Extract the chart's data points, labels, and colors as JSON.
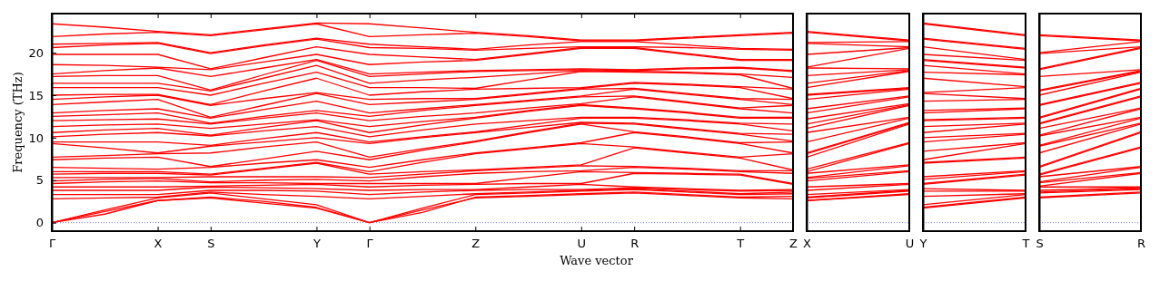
{
  "chart_data": [
    {
      "type": "line",
      "xlabel": "Wave vector",
      "ylabel": "Frequency (THz)",
      "categories": [
        "Γ",
        null,
        "X",
        "S",
        null,
        "Y",
        "Γ",
        null,
        "Z",
        null,
        "U",
        "R",
        null,
        "T",
        "Z"
      ],
      "ylim": [
        -1,
        24.6
      ],
      "yticks": [
        0,
        5,
        10,
        15,
        20
      ],
      "ref_lines": [
        {
          "axis": "y",
          "value": 0,
          "color": "#7f7fff",
          "line_style": "dotted"
        }
      ],
      "series": [
        {
          "color": "#ff0000",
          "values": [
            0,
            1.3,
            2.6,
            2.9,
            2.3,
            1.7,
            0,
            1.5,
            2.9,
            3.1,
            3.3,
            3.5,
            3.2,
            2.9,
            2.8
          ]
        },
        {
          "color": "#ff0000",
          "values": [
            0,
            1.0,
            2.6,
            3.0,
            2.5,
            1.8,
            0,
            1.2,
            3.0,
            3.2,
            3.4,
            3.6,
            3.3,
            3.0,
            3.1
          ]
        },
        {
          "color": "#ff0000",
          "values": [
            0,
            1.5,
            2.9,
            3.5,
            2.8,
            2.1,
            0,
            1.7,
            3.3,
            3.5,
            3.7,
            3.9,
            3.6,
            3.3,
            3.4
          ]
        },
        {
          "color": "#ff0000",
          "values": [
            2.8,
            2.9,
            3.0,
            3.6,
            3.3,
            3.1,
            2.8,
            3.1,
            3.4,
            3.6,
            3.8,
            4.0,
            3.7,
            3.4,
            3.6
          ]
        },
        {
          "color": "#ff0000",
          "values": [
            3.3,
            3.3,
            3.3,
            3.8,
            3.8,
            3.7,
            3.3,
            3.6,
            3.8,
            3.9,
            3.9,
            4.1,
            3.9,
            3.7,
            3.8
          ]
        },
        {
          "color": "#ff0000",
          "values": [
            3.8,
            3.8,
            3.8,
            4.2,
            4.1,
            4.0,
            3.8,
            3.9,
            3.9,
            4.2,
            4.5,
            4.2,
            4.0,
            3.8,
            3.9
          ]
        },
        {
          "color": "#ff0000",
          "values": [
            4.2,
            4.2,
            4.2,
            4.3,
            4.4,
            4.5,
            4.2,
            4.4,
            4.5,
            4.6,
            4.6,
            5.8,
            5.7,
            5.6,
            4.5
          ]
        },
        {
          "color": "#ff0000",
          "values": [
            4.6,
            4.8,
            4.9,
            4.7,
            4.7,
            4.6,
            4.6,
            4.6,
            4.6,
            5.3,
            6.0,
            5.9,
            5.8,
            5.7,
            4.6
          ]
        },
        {
          "color": "#ff0000",
          "values": [
            4.9,
            5.1,
            5.2,
            4.8,
            5.0,
            5.1,
            4.9,
            5.4,
            5.8,
            6.0,
            6.1,
            6.5,
            6.3,
            6.0,
            5.8
          ]
        },
        {
          "color": "#ff0000",
          "values": [
            5.3,
            5.3,
            5.3,
            5.4,
            5.4,
            5.4,
            5.3,
            5.7,
            6.1,
            6.4,
            6.7,
            6.6,
            6.4,
            6.1,
            6.1
          ]
        },
        {
          "color": "#ff0000",
          "values": [
            5.7,
            5.8,
            5.8,
            5.6,
            6.3,
            7.0,
            5.7,
            6.0,
            6.2,
            6.5,
            6.8,
            8.8,
            8.2,
            7.6,
            6.2
          ]
        },
        {
          "color": "#ff0000",
          "values": [
            6.0,
            6.0,
            6.0,
            5.7,
            6.4,
            7.1,
            6.0,
            7.1,
            8.1,
            8.7,
            9.3,
            8.9,
            8.3,
            7.7,
            8.1
          ]
        },
        {
          "color": "#ff0000",
          "values": [
            6.5,
            6.4,
            6.3,
            6.5,
            7.0,
            7.4,
            6.5,
            7.4,
            8.2,
            8.8,
            9.4,
            10.6,
            10.0,
            9.3,
            8.2
          ]
        },
        {
          "color": "#ff0000",
          "values": [
            7.4,
            7.6,
            7.7,
            6.6,
            7.5,
            8.4,
            7.4,
            8.5,
            9.5,
            10.6,
            11.6,
            10.7,
            10.1,
            9.4,
            9.5
          ]
        },
        {
          "color": "#ff0000",
          "values": [
            7.7,
            7.9,
            8.1,
            8.2,
            8.9,
            9.5,
            7.7,
            8.7,
            9.6,
            10.7,
            11.7,
            11.6,
            11.0,
            10.4,
            9.6
          ]
        },
        {
          "color": "#ff0000",
          "values": [
            9.3,
            8.8,
            8.2,
            9.0,
            9.5,
            10.0,
            9.3,
            10.0,
            10.6,
            11.2,
            11.8,
            11.7,
            11.1,
            10.5,
            10.4
          ]
        },
        {
          "color": "#ff0000",
          "values": [
            9.5,
            9.5,
            9.5,
            9.1,
            9.9,
            10.6,
            9.5,
            10.1,
            10.7,
            11.5,
            12.3,
            12.3,
            12.0,
            11.6,
            10.8
          ]
        },
        {
          "color": "#ff0000",
          "values": [
            10.1,
            10.4,
            10.6,
            10.2,
            10.8,
            11.3,
            10.1,
            10.9,
            11.6,
            12.0,
            12.4,
            12.4,
            12.1,
            11.7,
            11.6
          ]
        },
        {
          "color": "#ff0000",
          "values": [
            10.6,
            10.9,
            11.1,
            10.3,
            11.2,
            12.0,
            10.6,
            11.5,
            12.3,
            13.1,
            13.8,
            13.4,
            12.9,
            12.3,
            12.3
          ]
        },
        {
          "color": "#ff0000",
          "values": [
            11.3,
            11.5,
            11.6,
            11.1,
            11.6,
            12.1,
            11.3,
            11.9,
            12.4,
            13.2,
            13.9,
            13.5,
            13.0,
            12.4,
            12.4
          ]
        },
        {
          "color": "#ff0000",
          "values": [
            12.0,
            12.1,
            12.2,
            11.6,
            12.3,
            12.9,
            12.0,
            12.5,
            12.9,
            13.5,
            14.0,
            14.8,
            14.1,
            13.4,
            12.9
          ]
        },
        {
          "color": "#ff0000",
          "values": [
            12.5,
            12.7,
            12.9,
            11.7,
            12.5,
            13.2,
            12.5,
            13.2,
            13.8,
            14.3,
            14.8,
            14.9,
            14.2,
            13.5,
            13.8
          ]
        },
        {
          "color": "#ff0000",
          "values": [
            12.9,
            13.2,
            13.4,
            12.3,
            13.3,
            14.3,
            12.9,
            13.4,
            13.9,
            14.4,
            14.9,
            15.7,
            15.1,
            14.5,
            13.9
          ]
        },
        {
          "color": "#ff0000",
          "values": [
            13.9,
            14.2,
            14.5,
            12.4,
            13.8,
            15.2,
            13.9,
            14.2,
            14.5,
            15.1,
            15.7,
            15.8,
            15.2,
            14.6,
            14.5
          ]
        },
        {
          "color": "#ff0000",
          "values": [
            14.5,
            14.8,
            15.0,
            13.8,
            14.6,
            15.3,
            14.5,
            14.6,
            14.6,
            15.2,
            15.8,
            16.4,
            16.2,
            15.9,
            14.6
          ]
        },
        {
          "color": "#ff0000",
          "values": [
            15.0,
            15.1,
            15.1,
            13.9,
            15.5,
            17.0,
            15.0,
            15.4,
            15.7,
            15.8,
            15.9,
            16.5,
            16.3,
            16.0,
            15.7
          ]
        },
        {
          "color": "#ff0000",
          "values": [
            15.9,
            15.9,
            15.9,
            15.0,
            16.4,
            17.7,
            15.9,
            15.9,
            15.8,
            16.8,
            17.8,
            17.7,
            17.6,
            17.4,
            15.8
          ]
        },
        {
          "color": "#ff0000",
          "values": [
            16.4,
            16.4,
            16.4,
            15.5,
            17.0,
            18.5,
            16.4,
            16.8,
            17.1,
            17.5,
            17.9,
            17.8,
            17.7,
            17.5,
            17.1
          ]
        },
        {
          "color": "#ff0000",
          "values": [
            17.2,
            17.3,
            17.3,
            15.6,
            17.4,
            19.1,
            17.2,
            17.5,
            17.8,
            17.9,
            18.0,
            17.9,
            18.1,
            18.2,
            17.8
          ]
        },
        {
          "color": "#ff0000",
          "values": [
            17.5,
            17.9,
            18.2,
            17.2,
            18.2,
            19.2,
            17.5,
            17.7,
            17.9,
            18.0,
            18.1,
            18.0,
            18.2,
            18.3,
            17.9
          ]
        },
        {
          "color": "#ff0000",
          "values": [
            18.6,
            18.5,
            18.3,
            18.0,
            18.9,
            19.8,
            18.6,
            18.9,
            19.1,
            19.8,
            20.5,
            20.5,
            19.8,
            19.1,
            19.1
          ]
        },
        {
          "color": "#ff0000",
          "values": [
            19.8,
            19.8,
            19.8,
            18.1,
            19.4,
            20.7,
            19.8,
            19.5,
            19.2,
            19.9,
            20.6,
            20.6,
            19.9,
            19.2,
            19.2
          ]
        },
        {
          "color": "#ff0000",
          "values": [
            20.6,
            20.9,
            21.1,
            19.9,
            20.8,
            21.6,
            20.6,
            20.5,
            20.3,
            20.5,
            20.7,
            20.7,
            20.6,
            20.4,
            20.3
          ]
        },
        {
          "color": "#ff0000",
          "values": [
            21.0,
            21.1,
            21.2,
            20.0,
            20.9,
            21.7,
            21.0,
            20.7,
            20.4,
            20.9,
            21.3,
            21.3,
            20.9,
            20.5,
            20.4
          ]
        },
        {
          "color": "#ff0000",
          "values": [
            21.9,
            22.2,
            22.4,
            22.0,
            22.7,
            23.4,
            21.9,
            22.1,
            22.3,
            21.9,
            21.4,
            21.4,
            21.7,
            22.0,
            22.3
          ]
        },
        {
          "color": "#ff0000",
          "values": [
            23.4,
            23.0,
            22.5,
            22.1,
            22.8,
            23.5,
            23.4,
            22.9,
            22.4,
            22.0,
            21.5,
            21.5,
            21.8,
            22.1,
            22.4
          ]
        }
      ]
    },
    {
      "type": "line",
      "categories": [
        "X",
        "U"
      ],
      "ylim": [
        -1,
        24.6
      ],
      "yticks": [
        0,
        5,
        10,
        15,
        20
      ],
      "tick_labels": "x",
      "ref_lines": [
        {
          "axis": "y",
          "value": 0,
          "color": "#7f7fff",
          "line_style": "dotted"
        }
      ],
      "series": [
        {
          "color": "#ff0000",
          "values": [
            2.6,
            3.3
          ]
        },
        {
          "color": "#ff0000",
          "values": [
            2.6,
            3.4
          ]
        },
        {
          "color": "#ff0000",
          "values": [
            2.9,
            3.7
          ]
        },
        {
          "color": "#ff0000",
          "values": [
            3.0,
            3.8
          ]
        },
        {
          "color": "#ff0000",
          "values": [
            3.3,
            3.9
          ]
        },
        {
          "color": "#ff0000",
          "values": [
            3.8,
            4.5
          ]
        },
        {
          "color": "#ff0000",
          "values": [
            4.2,
            4.6
          ]
        },
        {
          "color": "#ff0000",
          "values": [
            4.9,
            6.0
          ]
        },
        {
          "color": "#ff0000",
          "values": [
            5.2,
            6.1
          ]
        },
        {
          "color": "#ff0000",
          "values": [
            5.3,
            6.7
          ]
        },
        {
          "color": "#ff0000",
          "values": [
            5.8,
            6.8
          ]
        },
        {
          "color": "#ff0000",
          "values": [
            6.0,
            9.3
          ]
        },
        {
          "color": "#ff0000",
          "values": [
            6.3,
            9.4
          ]
        },
        {
          "color": "#ff0000",
          "values": [
            7.7,
            11.6
          ]
        },
        {
          "color": "#ff0000",
          "values": [
            8.1,
            11.7
          ]
        },
        {
          "color": "#ff0000",
          "values": [
            8.2,
            11.8
          ]
        },
        {
          "color": "#ff0000",
          "values": [
            9.5,
            12.3
          ]
        },
        {
          "color": "#ff0000",
          "values": [
            10.6,
            12.4
          ]
        },
        {
          "color": "#ff0000",
          "values": [
            11.1,
            13.8
          ]
        },
        {
          "color": "#ff0000",
          "values": [
            11.6,
            13.9
          ]
        },
        {
          "color": "#ff0000",
          "values": [
            12.2,
            14.0
          ]
        },
        {
          "color": "#ff0000",
          "values": [
            12.9,
            14.8
          ]
        },
        {
          "color": "#ff0000",
          "values": [
            13.4,
            14.9
          ]
        },
        {
          "color": "#ff0000",
          "values": [
            14.5,
            15.7
          ]
        },
        {
          "color": "#ff0000",
          "values": [
            15.0,
            15.8
          ]
        },
        {
          "color": "#ff0000",
          "values": [
            15.1,
            15.9
          ]
        },
        {
          "color": "#ff0000",
          "values": [
            15.9,
            17.8
          ]
        },
        {
          "color": "#ff0000",
          "values": [
            16.4,
            17.9
          ]
        },
        {
          "color": "#ff0000",
          "values": [
            17.3,
            18.0
          ]
        },
        {
          "color": "#ff0000",
          "values": [
            18.2,
            18.1
          ]
        },
        {
          "color": "#ff0000",
          "values": [
            18.3,
            20.5
          ]
        },
        {
          "color": "#ff0000",
          "values": [
            19.8,
            20.6
          ]
        },
        {
          "color": "#ff0000",
          "values": [
            21.1,
            20.7
          ]
        },
        {
          "color": "#ff0000",
          "values": [
            21.2,
            21.3
          ]
        },
        {
          "color": "#ff0000",
          "values": [
            22.4,
            21.4
          ]
        },
        {
          "color": "#ff0000",
          "values": [
            22.5,
            21.5
          ]
        }
      ]
    },
    {
      "type": "line",
      "categories": [
        "Y",
        "T"
      ],
      "ylim": [
        -1,
        24.6
      ],
      "yticks": [
        0,
        5,
        10,
        15,
        20
      ],
      "tick_labels": "x",
      "ref_lines": [
        {
          "axis": "y",
          "value": 0,
          "color": "#7f7fff",
          "line_style": "dotted"
        }
      ],
      "series": [
        {
          "color": "#ff0000",
          "values": [
            1.7,
            2.9
          ]
        },
        {
          "color": "#ff0000",
          "values": [
            1.8,
            3.0
          ]
        },
        {
          "color": "#ff0000",
          "values": [
            2.1,
            3.3
          ]
        },
        {
          "color": "#ff0000",
          "values": [
            3.1,
            3.4
          ]
        },
        {
          "color": "#ff0000",
          "values": [
            3.7,
            3.7
          ]
        },
        {
          "color": "#ff0000",
          "values": [
            4.0,
            3.8
          ]
        },
        {
          "color": "#ff0000",
          "values": [
            4.5,
            5.6
          ]
        },
        {
          "color": "#ff0000",
          "values": [
            4.6,
            5.7
          ]
        },
        {
          "color": "#ff0000",
          "values": [
            5.1,
            6.0
          ]
        },
        {
          "color": "#ff0000",
          "values": [
            5.4,
            6.1
          ]
        },
        {
          "color": "#ff0000",
          "values": [
            7.0,
            7.6
          ]
        },
        {
          "color": "#ff0000",
          "values": [
            7.1,
            7.7
          ]
        },
        {
          "color": "#ff0000",
          "values": [
            7.4,
            9.3
          ]
        },
        {
          "color": "#ff0000",
          "values": [
            8.4,
            9.4
          ]
        },
        {
          "color": "#ff0000",
          "values": [
            9.5,
            10.4
          ]
        },
        {
          "color": "#ff0000",
          "values": [
            10.0,
            10.5
          ]
        },
        {
          "color": "#ff0000",
          "values": [
            10.6,
            11.6
          ]
        },
        {
          "color": "#ff0000",
          "values": [
            11.3,
            11.7
          ]
        },
        {
          "color": "#ff0000",
          "values": [
            12.0,
            12.3
          ]
        },
        {
          "color": "#ff0000",
          "values": [
            12.1,
            12.4
          ]
        },
        {
          "color": "#ff0000",
          "values": [
            12.9,
            13.4
          ]
        },
        {
          "color": "#ff0000",
          "values": [
            13.2,
            13.5
          ]
        },
        {
          "color": "#ff0000",
          "values": [
            14.3,
            14.5
          ]
        },
        {
          "color": "#ff0000",
          "values": [
            15.2,
            14.6
          ]
        },
        {
          "color": "#ff0000",
          "values": [
            15.3,
            15.9
          ]
        },
        {
          "color": "#ff0000",
          "values": [
            17.0,
            16.0
          ]
        },
        {
          "color": "#ff0000",
          "values": [
            17.7,
            17.4
          ]
        },
        {
          "color": "#ff0000",
          "values": [
            18.5,
            17.5
          ]
        },
        {
          "color": "#ff0000",
          "values": [
            19.1,
            18.2
          ]
        },
        {
          "color": "#ff0000",
          "values": [
            19.2,
            18.3
          ]
        },
        {
          "color": "#ff0000",
          "values": [
            19.8,
            19.1
          ]
        },
        {
          "color": "#ff0000",
          "values": [
            20.7,
            19.2
          ]
        },
        {
          "color": "#ff0000",
          "values": [
            21.6,
            20.4
          ]
        },
        {
          "color": "#ff0000",
          "values": [
            21.7,
            20.5
          ]
        },
        {
          "color": "#ff0000",
          "values": [
            23.4,
            22.0
          ]
        },
        {
          "color": "#ff0000",
          "values": [
            23.5,
            22.1
          ]
        }
      ]
    },
    {
      "type": "line",
      "categories": [
        "S",
        "R"
      ],
      "ylim": [
        -1,
        24.6
      ],
      "yticks": [
        0,
        5,
        10,
        15,
        20
      ],
      "tick_labels": "x",
      "ref_lines": [
        {
          "axis": "y",
          "value": 0,
          "color": "#7f7fff",
          "line_style": "dotted"
        }
      ],
      "series": [
        {
          "color": "#ff0000",
          "values": [
            2.9,
            3.5
          ]
        },
        {
          "color": "#ff0000",
          "values": [
            3.0,
            3.6
          ]
        },
        {
          "color": "#ff0000",
          "values": [
            3.5,
            3.9
          ]
        },
        {
          "color": "#ff0000",
          "values": [
            3.6,
            4.0
          ]
        },
        {
          "color": "#ff0000",
          "values": [
            3.8,
            4.1
          ]
        },
        {
          "color": "#ff0000",
          "values": [
            4.2,
            4.2
          ]
        },
        {
          "color": "#ff0000",
          "values": [
            4.3,
            5.8
          ]
        },
        {
          "color": "#ff0000",
          "values": [
            4.7,
            5.9
          ]
        },
        {
          "color": "#ff0000",
          "values": [
            4.8,
            6.5
          ]
        },
        {
          "color": "#ff0000",
          "values": [
            5.4,
            6.6
          ]
        },
        {
          "color": "#ff0000",
          "values": [
            5.6,
            8.8
          ]
        },
        {
          "color": "#ff0000",
          "values": [
            5.7,
            8.9
          ]
        },
        {
          "color": "#ff0000",
          "values": [
            6.5,
            10.6
          ]
        },
        {
          "color": "#ff0000",
          "values": [
            6.6,
            10.7
          ]
        },
        {
          "color": "#ff0000",
          "values": [
            8.2,
            11.6
          ]
        },
        {
          "color": "#ff0000",
          "values": [
            9.0,
            11.7
          ]
        },
        {
          "color": "#ff0000",
          "values": [
            9.1,
            12.3
          ]
        },
        {
          "color": "#ff0000",
          "values": [
            10.2,
            12.4
          ]
        },
        {
          "color": "#ff0000",
          "values": [
            10.3,
            13.4
          ]
        },
        {
          "color": "#ff0000",
          "values": [
            11.1,
            13.5
          ]
        },
        {
          "color": "#ff0000",
          "values": [
            11.6,
            14.8
          ]
        },
        {
          "color": "#ff0000",
          "values": [
            11.7,
            14.9
          ]
        },
        {
          "color": "#ff0000",
          "values": [
            12.3,
            15.7
          ]
        },
        {
          "color": "#ff0000",
          "values": [
            12.4,
            15.8
          ]
        },
        {
          "color": "#ff0000",
          "values": [
            13.8,
            16.4
          ]
        },
        {
          "color": "#ff0000",
          "values": [
            13.9,
            16.5
          ]
        },
        {
          "color": "#ff0000",
          "values": [
            15.0,
            17.7
          ]
        },
        {
          "color": "#ff0000",
          "values": [
            15.5,
            17.8
          ]
        },
        {
          "color": "#ff0000",
          "values": [
            15.6,
            17.9
          ]
        },
        {
          "color": "#ff0000",
          "values": [
            17.2,
            18.0
          ]
        },
        {
          "color": "#ff0000",
          "values": [
            18.0,
            20.5
          ]
        },
        {
          "color": "#ff0000",
          "values": [
            18.1,
            20.6
          ]
        },
        {
          "color": "#ff0000",
          "values": [
            19.9,
            20.7
          ]
        },
        {
          "color": "#ff0000",
          "values": [
            20.0,
            21.3
          ]
        },
        {
          "color": "#ff0000",
          "values": [
            22.0,
            21.4
          ]
        },
        {
          "color": "#ff0000",
          "values": [
            22.1,
            21.5
          ]
        }
      ]
    }
  ]
}
